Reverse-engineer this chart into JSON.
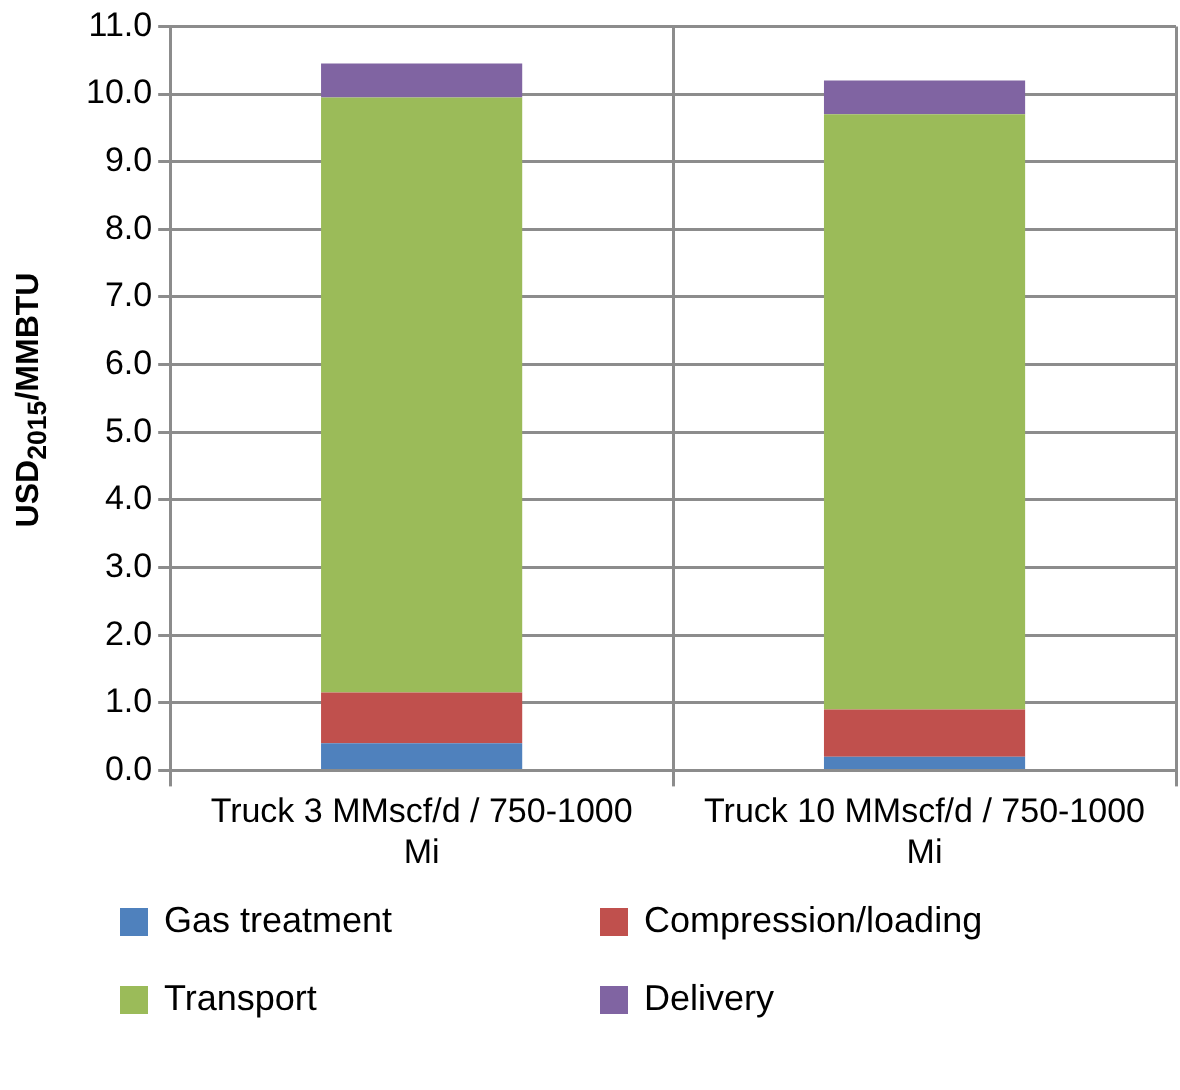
{
  "chart_data": {
    "type": "bar",
    "stacked": true,
    "ylabel": "USD$_{2015}$/MMBTU",
    "categories": [
      "Truck 3 MMscf/d / 750-1000 Mi",
      "Truck 10 MMscf/d / 750-1000 Mi"
    ],
    "series": [
      {
        "name": "Gas treatment",
        "color": "#4f81bd",
        "values": [
          0.4,
          0.2
        ]
      },
      {
        "name": "Compression/loading",
        "color": "#c0504d",
        "values": [
          0.75,
          0.7
        ]
      },
      {
        "name": "Transport",
        "color": "#9bbb59",
        "values": [
          8.8,
          8.8
        ]
      },
      {
        "name": "Delivery",
        "color": "#8064a2",
        "values": [
          0.5,
          0.5
        ]
      }
    ],
    "ylim": [
      0,
      11
    ],
    "yticks": [
      {
        "value": 0,
        "label": "0.0"
      },
      {
        "value": 1,
        "label": "1.0"
      },
      {
        "value": 2,
        "label": "2.0"
      },
      {
        "value": 3,
        "label": "3.0"
      },
      {
        "value": 4,
        "label": "4.0"
      },
      {
        "value": 5,
        "label": "5.0"
      },
      {
        "value": 6,
        "label": "6.0"
      },
      {
        "value": 7,
        "label": "7.0"
      },
      {
        "value": 8,
        "label": "8.0"
      },
      {
        "value": 9,
        "label": "9.0"
      },
      {
        "value": 10,
        "label": "10.0"
      },
      {
        "value": 11,
        "label": "11.0"
      }
    ],
    "grid": true,
    "legend": "bottom"
  }
}
